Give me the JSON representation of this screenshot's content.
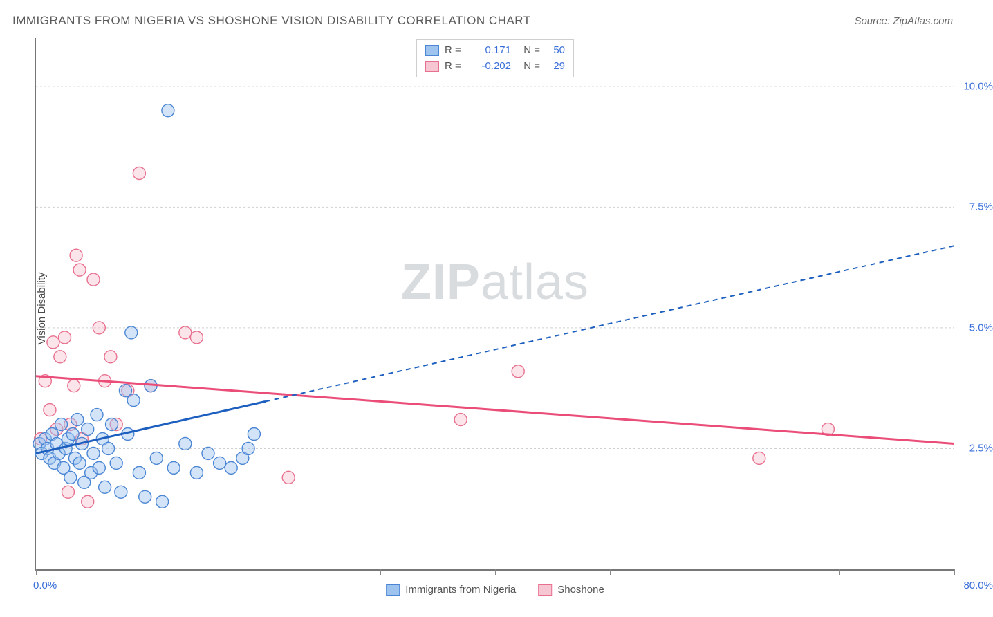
{
  "chart": {
    "type": "scatter",
    "title": "IMMIGRANTS FROM NIGERIA VS SHOSHONE VISION DISABILITY CORRELATION CHART",
    "source_text": "Source: ZipAtlas.com",
    "y_axis_label": "Vision Disability",
    "watermark": {
      "part1": "ZIP",
      "part2": "atlas"
    },
    "background_color": "#ffffff",
    "grid_color": "#d0d0d0",
    "axis_color": "#777777",
    "tick_label_color": "#3a6fd8",
    "title_color": "#5a5a5a",
    "title_fontsize": 17,
    "label_fontsize": 15,
    "xlim": [
      0,
      80
    ],
    "ylim": [
      0,
      11
    ],
    "x_tick_positions": [
      0,
      10,
      20,
      30,
      40,
      50,
      60,
      70,
      80
    ],
    "x_tick_labels_shown": {
      "0": "0.0%",
      "80": "80.0%"
    },
    "y_grid_positions": [
      2.5,
      5.0,
      7.5,
      10.0
    ],
    "y_tick_labels": [
      "2.5%",
      "5.0%",
      "7.5%",
      "10.0%"
    ],
    "marker_radius": 9,
    "marker_stroke_width": 1.4,
    "marker_fill_opacity": 0.45,
    "series": {
      "nigeria": {
        "legend_label": "Immigrants from Nigeria",
        "color_fill": "#9ec3ef",
        "color_stroke": "#4b86d4",
        "R": "0.171",
        "N": "50",
        "trend_line": {
          "color": "#1d5fbf",
          "width": 3,
          "solid_until_x": 20,
          "start": {
            "x": 0,
            "y": 2.4
          },
          "end": {
            "x": 80,
            "y": 6.7
          },
          "dash": "7 6"
        },
        "points": [
          {
            "x": 0.3,
            "y": 2.6
          },
          {
            "x": 0.5,
            "y": 2.4
          },
          {
            "x": 0.8,
            "y": 2.7
          },
          {
            "x": 1.0,
            "y": 2.5
          },
          {
            "x": 1.2,
            "y": 2.3
          },
          {
            "x": 1.4,
            "y": 2.8
          },
          {
            "x": 1.6,
            "y": 2.2
          },
          {
            "x": 1.8,
            "y": 2.6
          },
          {
            "x": 2.0,
            "y": 2.4
          },
          {
            "x": 2.2,
            "y": 3.0
          },
          {
            "x": 2.4,
            "y": 2.1
          },
          {
            "x": 2.6,
            "y": 2.5
          },
          {
            "x": 2.8,
            "y": 2.7
          },
          {
            "x": 3.0,
            "y": 1.9
          },
          {
            "x": 3.2,
            "y": 2.8
          },
          {
            "x": 3.4,
            "y": 2.3
          },
          {
            "x": 3.6,
            "y": 3.1
          },
          {
            "x": 3.8,
            "y": 2.2
          },
          {
            "x": 4.0,
            "y": 2.6
          },
          {
            "x": 4.2,
            "y": 1.8
          },
          {
            "x": 4.5,
            "y": 2.9
          },
          {
            "x": 4.8,
            "y": 2.0
          },
          {
            "x": 5.0,
            "y": 2.4
          },
          {
            "x": 5.3,
            "y": 3.2
          },
          {
            "x": 5.5,
            "y": 2.1
          },
          {
            "x": 5.8,
            "y": 2.7
          },
          {
            "x": 6.0,
            "y": 1.7
          },
          {
            "x": 6.3,
            "y": 2.5
          },
          {
            "x": 6.6,
            "y": 3.0
          },
          {
            "x": 7.0,
            "y": 2.2
          },
          {
            "x": 7.4,
            "y": 1.6
          },
          {
            "x": 7.8,
            "y": 3.7
          },
          {
            "x": 8.0,
            "y": 2.8
          },
          {
            "x": 8.3,
            "y": 4.9
          },
          {
            "x": 8.5,
            "y": 3.5
          },
          {
            "x": 9.0,
            "y": 2.0
          },
          {
            "x": 9.5,
            "y": 1.5
          },
          {
            "x": 10.0,
            "y": 3.8
          },
          {
            "x": 10.5,
            "y": 2.3
          },
          {
            "x": 11.0,
            "y": 1.4
          },
          {
            "x": 11.5,
            "y": 9.5
          },
          {
            "x": 12.0,
            "y": 2.1
          },
          {
            "x": 13.0,
            "y": 2.6
          },
          {
            "x": 14.0,
            "y": 2.0
          },
          {
            "x": 15.0,
            "y": 2.4
          },
          {
            "x": 16.0,
            "y": 2.2
          },
          {
            "x": 17.0,
            "y": 2.1
          },
          {
            "x": 18.0,
            "y": 2.3
          },
          {
            "x": 18.5,
            "y": 2.5
          },
          {
            "x": 19.0,
            "y": 2.8
          }
        ]
      },
      "shoshone": {
        "legend_label": "Shoshone",
        "color_fill": "#f7c6d3",
        "color_stroke": "#e8708f",
        "R": "-0.202",
        "N": "29",
        "trend_line": {
          "color": "#ea4d78",
          "width": 3,
          "start": {
            "x": 0,
            "y": 4.0
          },
          "end": {
            "x": 80,
            "y": 2.6
          },
          "dash": null
        },
        "points": [
          {
            "x": 0.4,
            "y": 2.7
          },
          {
            "x": 0.8,
            "y": 3.9
          },
          {
            "x": 1.2,
            "y": 3.3
          },
          {
            "x": 1.5,
            "y": 4.7
          },
          {
            "x": 1.8,
            "y": 2.9
          },
          {
            "x": 2.1,
            "y": 4.4
          },
          {
            "x": 2.5,
            "y": 4.8
          },
          {
            "x": 2.8,
            "y": 1.6
          },
          {
            "x": 3.0,
            "y": 3.0
          },
          {
            "x": 3.3,
            "y": 3.8
          },
          {
            "x": 3.5,
            "y": 6.5
          },
          {
            "x": 3.8,
            "y": 6.2
          },
          {
            "x": 4.0,
            "y": 2.7
          },
          {
            "x": 4.5,
            "y": 1.4
          },
          {
            "x": 5.0,
            "y": 6.0
          },
          {
            "x": 5.5,
            "y": 5.0
          },
          {
            "x": 6.0,
            "y": 3.9
          },
          {
            "x": 6.5,
            "y": 4.4
          },
          {
            "x": 7.0,
            "y": 3.0
          },
          {
            "x": 8.0,
            "y": 3.7
          },
          {
            "x": 9.0,
            "y": 8.2
          },
          {
            "x": 10.0,
            "y": 3.8
          },
          {
            "x": 13.0,
            "y": 4.9
          },
          {
            "x": 14.0,
            "y": 4.8
          },
          {
            "x": 22.0,
            "y": 1.9
          },
          {
            "x": 37.0,
            "y": 3.1
          },
          {
            "x": 42.0,
            "y": 4.1
          },
          {
            "x": 63.0,
            "y": 2.3
          },
          {
            "x": 69.0,
            "y": 2.9
          }
        ]
      }
    },
    "legend_top": {
      "r_label": "R =",
      "n_label": "N ="
    },
    "legend_bottom_swatch_border_width": 1.5
  }
}
